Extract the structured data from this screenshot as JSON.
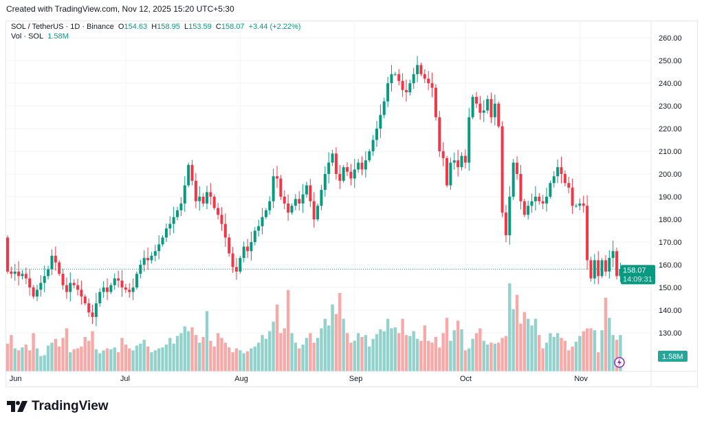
{
  "header": {
    "created": "Created with TradingView.com, Nov 12, 2025 15:20 UTC+5:30"
  },
  "legend": {
    "symbol": "SOL / TetherUS · 1D · Binance",
    "open_label": "O",
    "open": "154.63",
    "high_label": "H",
    "high": "158.95",
    "low_label": "L",
    "low": "153.59",
    "close_label": "C",
    "close": "158.07",
    "change": "+3.44 (+2.22%)",
    "vol_label": "Vol · SOL",
    "vol": "1.58M"
  },
  "price_badge": {
    "price": "158.07",
    "countdown": "14:09:31"
  },
  "volume_badge": "1.58M",
  "footer": {
    "logo_text": "TradingView"
  },
  "colors": {
    "up": "#089981",
    "down": "#f23645",
    "vol_up": "#92d2cc",
    "vol_down": "#f7a9a7"
  },
  "chart_data": {
    "type": "candlestick",
    "interval": "1D",
    "first_date": "2025-05-30",
    "last_date": "2025-11-12",
    "ylim": [
      124,
      264
    ],
    "y_ticks": [
      "130.00",
      "140.00",
      "150.00",
      "160.00",
      "170.00",
      "180.00",
      "190.00",
      "200.00",
      "210.00",
      "220.00",
      "230.00",
      "240.00",
      "250.00",
      "260.00"
    ],
    "x_ticks": [
      {
        "label": "Jun",
        "index": 2
      },
      {
        "label": "Jul",
        "index": 32
      },
      {
        "label": "Aug",
        "index": 63
      },
      {
        "label": "Sep",
        "index": 94
      },
      {
        "label": "Oct",
        "index": 124
      },
      {
        "label": "Nov",
        "index": 155
      }
    ],
    "first_open": 172,
    "close": [
      157,
      156,
      157,
      155,
      156,
      154,
      150,
      146,
      149,
      152,
      155,
      158,
      164,
      161,
      156,
      151,
      148,
      152,
      151,
      149,
      146,
      143,
      139,
      137,
      143,
      148,
      150,
      148,
      151,
      154,
      153,
      150,
      149,
      148,
      150,
      156,
      160,
      163,
      162,
      164,
      166,
      169,
      172,
      176,
      178,
      181,
      184,
      187,
      195,
      204,
      197,
      188,
      190,
      187,
      192,
      190,
      185,
      182,
      178,
      172,
      165,
      159,
      157,
      163,
      168,
      166,
      170,
      175,
      177,
      181,
      184,
      188,
      199,
      198,
      190,
      187,
      183,
      186,
      189,
      187,
      191,
      195,
      188,
      180,
      186,
      193,
      200,
      205,
      209,
      200,
      197,
      203,
      201,
      198,
      202,
      205,
      202,
      206,
      210,
      215,
      220,
      226,
      232,
      240,
      244,
      244,
      241,
      237,
      236,
      240,
      244,
      248,
      244,
      242,
      240,
      238,
      225,
      210,
      207,
      195,
      205,
      206,
      203,
      208,
      205,
      225,
      234,
      231,
      227,
      228,
      233,
      225,
      231,
      221,
      183,
      173,
      190,
      205,
      200,
      188,
      182,
      186,
      188,
      190,
      188,
      187,
      190,
      196,
      199,
      203,
      200,
      196,
      194,
      186,
      186,
      187,
      186,
      162,
      154,
      162,
      155,
      162,
      157,
      163,
      166,
      155,
      158.07
    ],
    "volume_m": [
      2.9,
      3.8,
      2.4,
      2.2,
      2.5,
      2.8,
      2.2,
      4.0,
      2.4,
      1.6,
      1.7,
      2.7,
      3.0,
      3.4,
      2.6,
      3.5,
      4.5,
      2.0,
      2.3,
      2.4,
      2.6,
      3.6,
      3.2,
      4.2,
      2.3,
      1.9,
      2.2,
      2.4,
      2.3,
      2.5,
      2.0,
      3.5,
      2.8,
      2.4,
      2.2,
      2.7,
      2.9,
      3.3,
      2.6,
      2.0,
      2.2,
      2.4,
      2.5,
      2.8,
      3.5,
      2.9,
      3.7,
      4.0,
      4.7,
      4.2,
      4.6,
      3.8,
      3.0,
      3.6,
      6.3,
      3.2,
      2.6,
      4.0,
      3.5,
      3.0,
      2.5,
      2.0,
      2.4,
      2.2,
      1.9,
      2.1,
      2.4,
      2.6,
      3.0,
      3.8,
      3.4,
      4.2,
      5.2,
      7.0,
      4.0,
      4.5,
      8.5,
      4.0,
      3.0,
      2.4,
      2.8,
      3.5,
      4.0,
      3.0,
      3.5,
      4.5,
      5.5,
      4.8,
      7.0,
      6.0,
      8.2,
      5.5,
      4.0,
      3.0,
      3.2,
      4.0,
      3.6,
      3.8,
      2.6,
      3.4,
      3.9,
      4.4,
      4.2,
      5.5,
      4.5,
      4.6,
      4.0,
      5.5,
      3.8,
      3.7,
      4.2,
      3.4,
      3.2,
      4.8,
      3.2,
      3.0,
      3.6,
      2.5,
      4.0,
      5.6,
      3.2,
      4.3,
      5.3,
      4.4,
      2.2,
      2.4,
      3.4,
      4.0,
      4.5,
      3.2,
      2.8,
      3.0,
      2.9,
      3.0,
      3.5,
      3.7,
      9.2,
      6.5,
      8.0,
      5.0,
      6.2,
      5.5,
      4.8,
      5.5,
      3.8,
      2.4,
      3.0,
      4.0,
      3.6,
      4.0,
      3.5,
      3.2,
      2.2,
      2.6,
      3.1,
      3.7,
      4.2,
      4.5,
      4.5,
      4.3,
      2.0,
      4.3,
      7.7,
      5.6,
      3.8,
      3.3,
      3.8,
      2.2,
      2.8,
      3.2,
      3.8,
      1.58
    ]
  }
}
